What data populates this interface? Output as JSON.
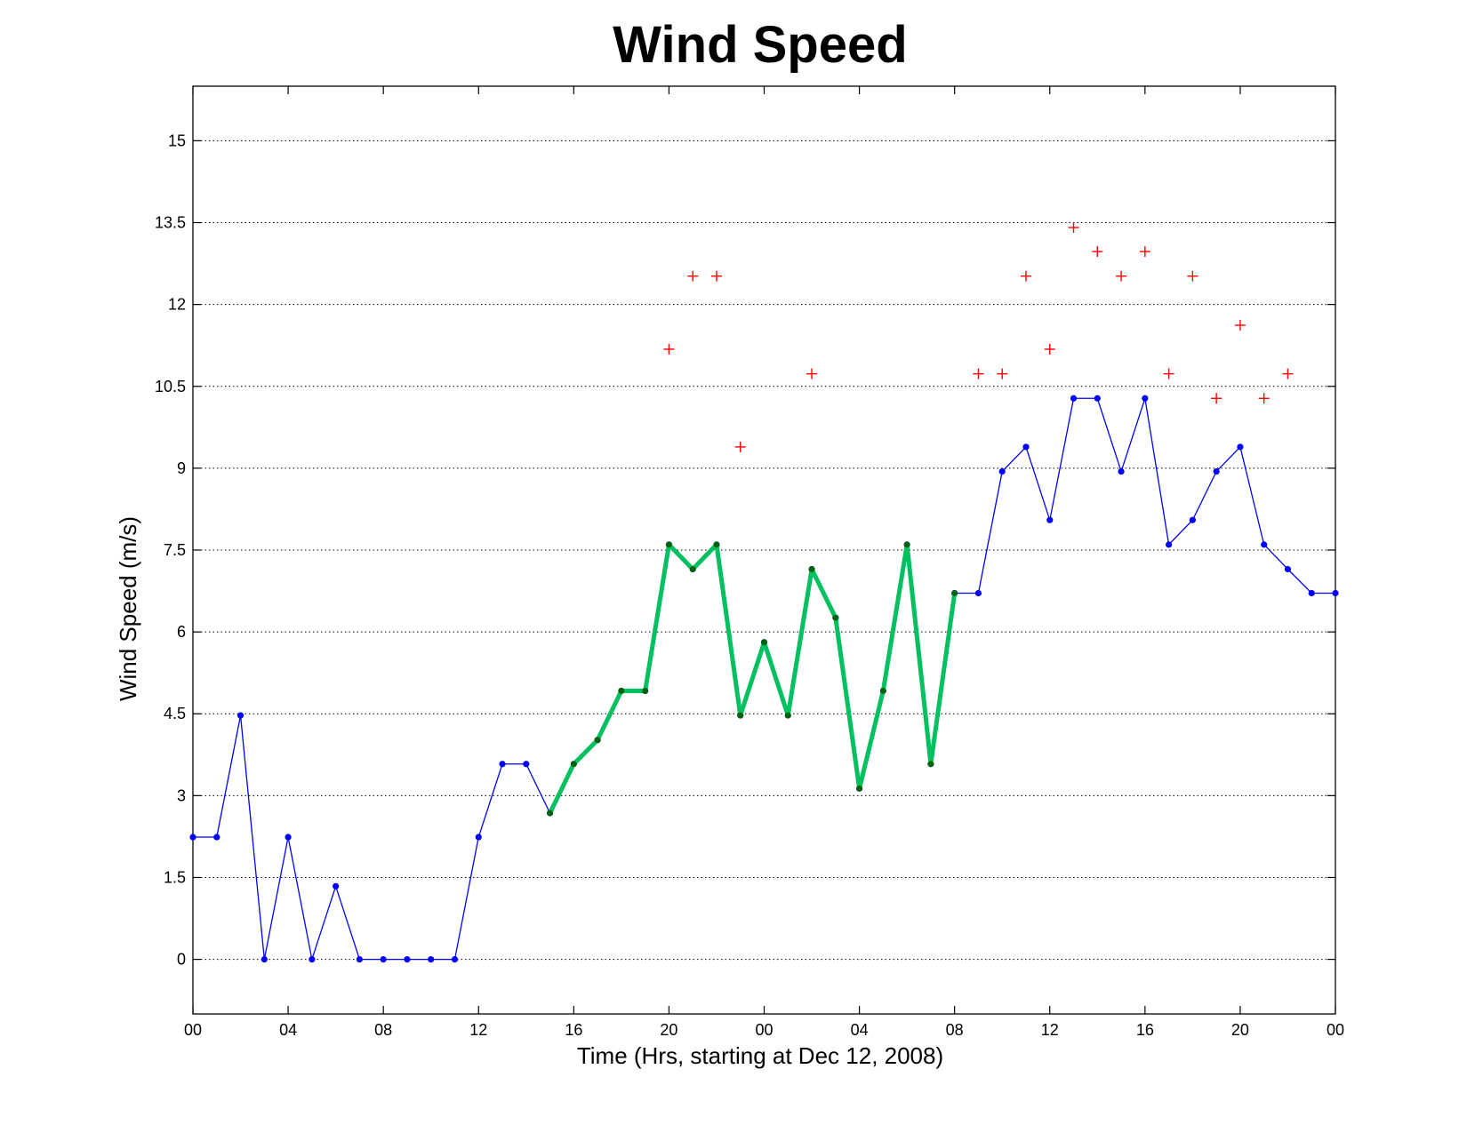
{
  "chart_data": {
    "type": "line",
    "title": "Wind Speed",
    "xlabel": "Time (Hrs, starting at Dec 12, 2008)",
    "ylabel": "Wind Speed (m/s)",
    "xlim": [
      0,
      48
    ],
    "ylim": [
      -1,
      16
    ],
    "grid": "y",
    "x_ticks": [
      0,
      4,
      8,
      12,
      16,
      20,
      24,
      28,
      32,
      36,
      40,
      44,
      48
    ],
    "x_tick_labels": [
      "00",
      "04",
      "08",
      "12",
      "16",
      "20",
      "00",
      "04",
      "08",
      "12",
      "16",
      "20",
      "00"
    ],
    "y_ticks": [
      0,
      1.5,
      3,
      4.5,
      6,
      7.5,
      9,
      10.5,
      12,
      13.5,
      15
    ],
    "y_tick_labels": [
      "0",
      "1.5",
      "3",
      "4.5",
      "6",
      "7.5",
      "9",
      "10.5",
      "12",
      "13.5",
      "15"
    ],
    "colors": {
      "blue": "#0000ff",
      "green_line": "#00c060",
      "green_marker": "#006400",
      "red": "#ff0000"
    },
    "series": [
      {
        "style": "thin-blue-line-dots",
        "x": [
          0,
          1,
          2,
          3,
          4,
          5,
          6,
          7,
          8,
          9,
          10,
          11,
          12,
          13,
          14,
          15,
          16,
          17,
          18,
          19,
          20,
          21,
          22,
          23,
          24,
          25,
          26,
          27,
          28,
          29,
          30,
          31,
          32,
          33,
          34,
          35,
          36,
          37,
          38,
          39,
          40,
          41,
          42,
          43,
          44,
          45,
          46,
          47,
          48
        ],
        "values": [
          2.24,
          2.24,
          4.47,
          0,
          2.24,
          0,
          1.34,
          0,
          0,
          0,
          0,
          0,
          2.24,
          3.58,
          3.58,
          2.68,
          3.58,
          4.02,
          4.92,
          4.92,
          7.6,
          7.15,
          7.6,
          4.47,
          5.81,
          4.47,
          7.15,
          6.26,
          3.13,
          4.92,
          7.6,
          3.58,
          6.71,
          6.71,
          8.94,
          9.39,
          8.05,
          10.28,
          10.28,
          8.94,
          10.28,
          7.6,
          8.05,
          8.94,
          9.39,
          7.6,
          7.15,
          6.71,
          6.71
        ]
      },
      {
        "style": "thick-green-line-dots",
        "x": [
          15,
          16,
          17,
          18,
          19,
          20,
          21,
          22,
          23,
          24,
          25,
          26,
          27,
          28,
          29,
          30,
          31,
          32
        ],
        "values": [
          2.68,
          3.58,
          4.02,
          4.92,
          4.92,
          7.6,
          7.15,
          7.6,
          4.47,
          5.81,
          4.47,
          7.15,
          6.26,
          3.13,
          4.92,
          7.6,
          3.58,
          6.71
        ]
      },
      {
        "style": "red-plus-markers",
        "x": [
          20,
          21,
          22,
          23,
          26,
          33,
          34,
          35,
          36,
          37,
          38,
          39,
          40,
          41,
          42,
          43,
          44,
          45,
          46
        ],
        "values": [
          11.18,
          12.52,
          12.52,
          9.39,
          10.73,
          10.73,
          10.73,
          12.52,
          11.18,
          13.41,
          12.97,
          12.52,
          12.97,
          10.73,
          12.52,
          10.28,
          11.62,
          10.28,
          10.73
        ]
      }
    ]
  }
}
